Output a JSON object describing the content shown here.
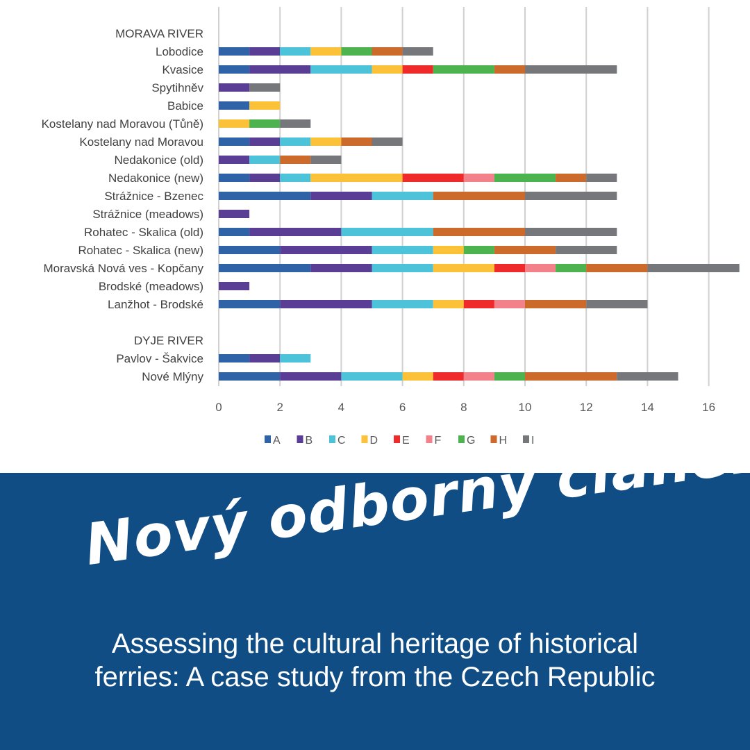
{
  "chart_data": {
    "type": "bar",
    "orientation": "horizontal-stacked",
    "title": "",
    "xlabel": "",
    "ylabel": "",
    "xlim": [
      0,
      17
    ],
    "xticks": [
      0,
      2,
      4,
      6,
      8,
      10,
      12,
      14,
      16
    ],
    "grid": true,
    "legend_position": "bottom",
    "categories": [
      "MORAVA RIVER",
      "Lobodice",
      "Kvasice",
      "Spytihněv",
      "Babice",
      "Kostelany nad Moravou (Tůně)",
      "Kostelany nad Moravou",
      "Nedakonice (old)",
      "Nedakonice (new)",
      "Strážnice - Bzenec",
      "Strážnice (meadows)",
      "Rohatec - Skalica (old)",
      "Rohatec - Skalica (new)",
      "Moravská Nová ves - Kopčany",
      "Brodské (meadows)",
      "Lanžhot - Brodské",
      "",
      "DYJE RIVER",
      "Pavlov - Šakvice",
      "Nové Mlýny"
    ],
    "series": [
      {
        "name": "A",
        "color": "#2e63a8",
        "values": [
          null,
          1,
          1,
          0,
          1,
          0,
          1,
          0,
          1,
          3,
          0,
          1,
          2,
          3,
          0,
          2,
          null,
          null,
          1,
          2
        ]
      },
      {
        "name": "B",
        "color": "#5a3e96",
        "values": [
          null,
          1,
          2,
          1,
          0,
          0,
          1,
          1,
          1,
          2,
          1,
          3,
          3,
          2,
          1,
          3,
          null,
          null,
          1,
          2
        ]
      },
      {
        "name": "C",
        "color": "#4dc3d9",
        "values": [
          null,
          1,
          2,
          0,
          0,
          0,
          1,
          1,
          1,
          2,
          0,
          3,
          2,
          2,
          0,
          2,
          null,
          null,
          1,
          2
        ]
      },
      {
        "name": "D",
        "color": "#fbc239",
        "values": [
          null,
          1,
          1,
          0,
          1,
          1,
          1,
          0,
          3,
          0,
          0,
          0,
          1,
          2,
          0,
          1,
          null,
          null,
          0,
          1
        ]
      },
      {
        "name": "E",
        "color": "#ee2a2a",
        "values": [
          null,
          0,
          1,
          0,
          0,
          0,
          0,
          0,
          2,
          0,
          0,
          0,
          0,
          1,
          0,
          1,
          null,
          null,
          0,
          1
        ]
      },
      {
        "name": "F",
        "color": "#f2818a",
        "values": [
          null,
          0,
          0,
          0,
          0,
          0,
          0,
          0,
          1,
          0,
          0,
          0,
          0,
          1,
          0,
          1,
          null,
          null,
          0,
          1
        ]
      },
      {
        "name": "G",
        "color": "#4db34f",
        "values": [
          null,
          1,
          2,
          0,
          0,
          1,
          0,
          0,
          2,
          0,
          0,
          0,
          1,
          1,
          0,
          0,
          null,
          null,
          0,
          1
        ]
      },
      {
        "name": "H",
        "color": "#cc6a2b",
        "values": [
          null,
          1,
          1,
          0,
          0,
          0,
          1,
          1,
          1,
          3,
          0,
          3,
          2,
          2,
          0,
          2,
          null,
          null,
          0,
          3
        ]
      },
      {
        "name": "I",
        "color": "#76777b",
        "values": [
          null,
          1,
          3,
          1,
          0,
          1,
          1,
          1,
          1,
          3,
          0,
          3,
          2,
          3,
          0,
          2,
          null,
          null,
          0,
          2
        ]
      }
    ]
  },
  "banner": {
    "title": "Nový odborný článek",
    "subtitle_line1": "Assessing the cultural heritage of historical",
    "subtitle_line2": "ferries: A case study from the Czech Republic"
  }
}
